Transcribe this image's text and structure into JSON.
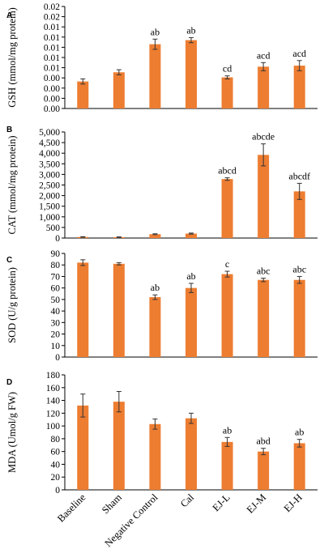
{
  "colors": {
    "bar": "#ED7D31",
    "axis": "#000000",
    "error_bar": "#333333"
  },
  "categories": [
    "Baseline",
    "Sham",
    "Negative Control",
    "Cal",
    "EJ-L",
    "EJ-M",
    "EJ-H"
  ],
  "chart_data": [
    {
      "panel": "A",
      "type": "bar",
      "ylabel": "GSH (mmol/mg protein)",
      "ylim": [
        0,
        0.02
      ],
      "ticks": [
        "0.00",
        "0.00",
        "0.00",
        "0.00",
        "0.01",
        "0.01",
        "0.01",
        "0.01",
        "0.01",
        "0.02",
        "0.02"
      ],
      "values": [
        0.0053,
        0.0071,
        0.0126,
        0.0134,
        0.0061,
        0.0082,
        0.0084
      ],
      "errors": [
        0.0005,
        0.0005,
        0.001,
        0.0005,
        0.0003,
        0.0008,
        0.001
      ],
      "annotations": [
        "",
        "",
        "ab",
        "ab",
        "cd",
        "acd",
        "acd"
      ]
    },
    {
      "panel": "B",
      "type": "bar",
      "ylabel": "CAT (mmol/mg protein)",
      "ylim": [
        0,
        5000
      ],
      "ticks": [
        "0",
        "500",
        "1,000",
        "1,500",
        "2,000",
        "2,500",
        "3,000",
        "3,500",
        "4,000",
        "4,500",
        "5,000"
      ],
      "values": [
        50,
        40,
        180,
        210,
        2780,
        3920,
        2200
      ],
      "errors": [
        15,
        15,
        20,
        25,
        60,
        520,
        380
      ],
      "annotations": [
        "",
        "",
        "",
        "",
        "abcd",
        "abcde",
        "abcdf"
      ]
    },
    {
      "panel": "C",
      "type": "bar",
      "ylabel": "SOD (U/g protein)",
      "ylim": [
        0,
        90
      ],
      "ticks": [
        "0",
        "10",
        "20",
        "30",
        "40",
        "50",
        "60",
        "70",
        "80",
        "90"
      ],
      "values": [
        82,
        81,
        52,
        60,
        72,
        67,
        67
      ],
      "errors": [
        2.5,
        1,
        2,
        4,
        2.5,
        1.5,
        3
      ],
      "annotations": [
        "",
        "",
        "ab",
        "ab",
        "c",
        "abc",
        "abc"
      ]
    },
    {
      "panel": "D",
      "type": "bar",
      "ylabel": "MDA (Umol/g FW)",
      "ylim": [
        0,
        180
      ],
      "ticks": [
        "0",
        "20",
        "40",
        "60",
        "80",
        "100",
        "120",
        "140",
        "160",
        "180"
      ],
      "values": [
        132,
        138,
        103,
        112,
        75,
        60,
        73
      ],
      "errors": [
        18,
        16,
        8,
        8,
        7,
        5,
        6
      ],
      "annotations": [
        "",
        "",
        "",
        "",
        "ab",
        "abd",
        "ab"
      ]
    }
  ]
}
